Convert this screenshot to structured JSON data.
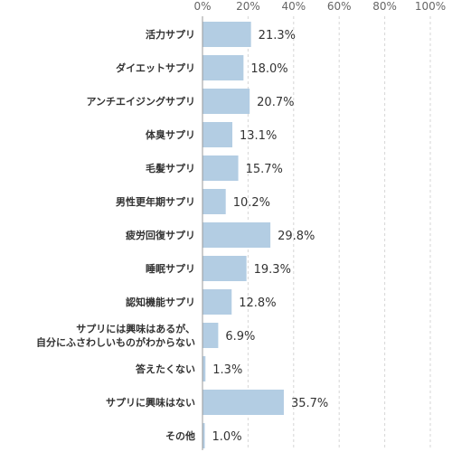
{
  "chart_data": {
    "type": "bar",
    "orientation": "horizontal",
    "title": "",
    "xlabel": "",
    "ylabel": "",
    "xlim": [
      0,
      100
    ],
    "x_ticks": [
      "0%",
      "20%",
      "40%",
      "60%",
      "80%",
      "100%"
    ],
    "grid": "vertical dashed",
    "bar_color": "#b3cde3",
    "categories": [
      [
        "活力サプリ"
      ],
      [
        "ダイエットサプリ"
      ],
      [
        "アンチエイジングサプリ"
      ],
      [
        "体臭サプリ"
      ],
      [
        "毛髪サプリ"
      ],
      [
        "男性更年期サプリ"
      ],
      [
        "疲労回復サプリ"
      ],
      [
        "睡眠サプリ"
      ],
      [
        "認知機能サプリ"
      ],
      [
        "サプリには興味はあるが、",
        "自分にふさわしいものがわからない"
      ],
      [
        "答えたくない"
      ],
      [
        "サプリに興味はない"
      ],
      [
        "その他"
      ]
    ],
    "values": [
      21.3,
      18.0,
      20.7,
      13.1,
      15.7,
      10.2,
      29.8,
      19.3,
      12.8,
      6.9,
      1.3,
      35.7,
      1.0
    ],
    "value_labels": [
      "21.3%",
      "18.0%",
      "20.7%",
      "13.1%",
      "15.7%",
      "10.2%",
      "29.8%",
      "19.3%",
      "12.8%",
      "6.9%",
      "1.3%",
      "35.7%",
      "1.0%"
    ]
  }
}
